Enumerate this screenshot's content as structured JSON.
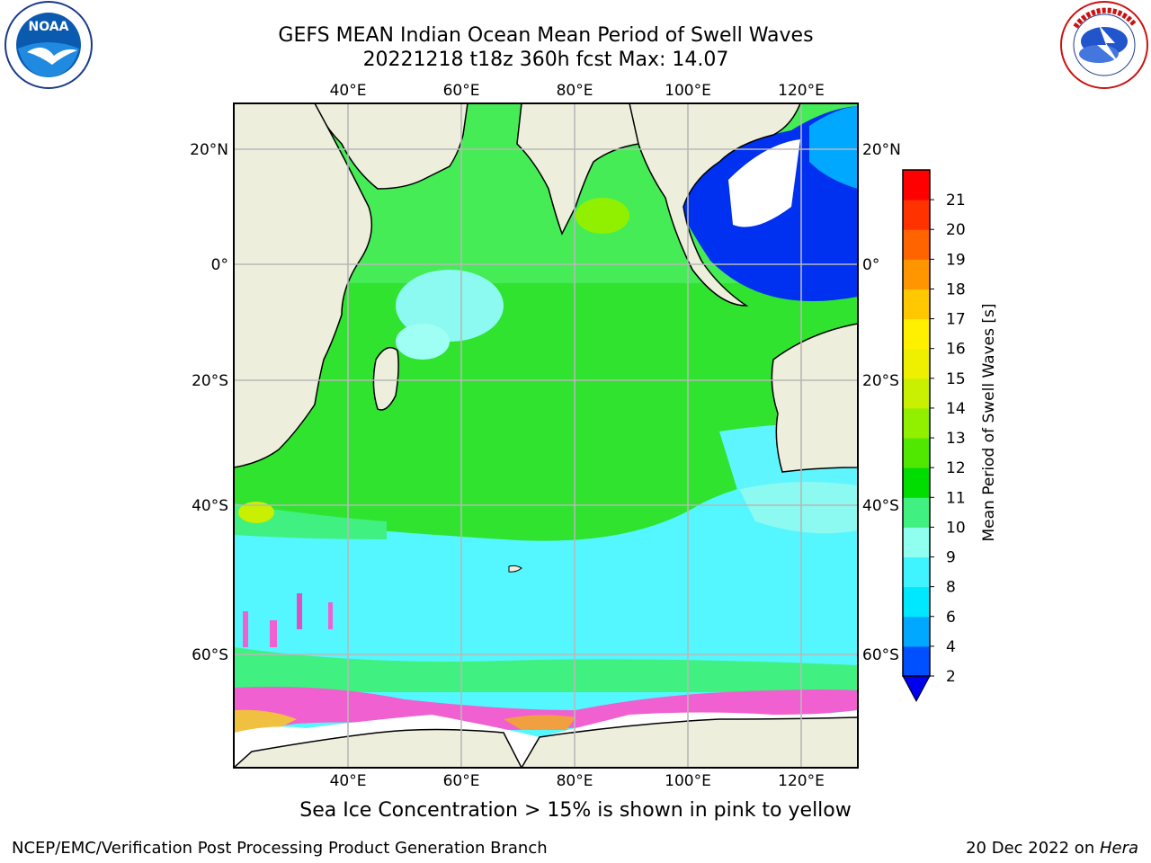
{
  "title_line1": "GEFS MEAN Indian Ocean Mean Period of Swell Waves",
  "title_line2": "20221218 t18z 360h fcst   Max: 14.07",
  "caption": "Sea Ice Concentration > 15% is shown in pink to yellow",
  "footer_left": "NCEP/EMC/Verification Post Processing Product Generation Branch",
  "footer_date": "20 Dec 2022 on ",
  "footer_host": "Hera",
  "logo_left_text": "NOAA",
  "logo_right_text": "NATIONAL WEATHER SERVICE",
  "map": {
    "lon_labels": [
      "40°E",
      "60°E",
      "80°E",
      "100°E",
      "120°E"
    ],
    "lat_labels_left": [
      "20°N",
      "0°",
      "20°S",
      "40°S",
      "60°S"
    ],
    "lat_labels_right": [
      "20°N",
      "0°",
      "20°S",
      "40°S",
      "60°S"
    ]
  },
  "colorbar": {
    "label": "Mean Period of Swell Waves [s]",
    "ticks": [
      "2",
      "4",
      "6",
      "8",
      "9",
      "10",
      "11",
      "12",
      "13",
      "14",
      "15",
      "16",
      "17",
      "18",
      "19",
      "20",
      "21"
    ],
    "colors": [
      "#0050ff",
      "#00a8ff",
      "#00e8ff",
      "#40f4ff",
      "#90fff0",
      "#40f080",
      "#00dd00",
      "#50e800",
      "#90f000",
      "#c8f000",
      "#eef000",
      "#fff000",
      "#ffc800",
      "#ff9600",
      "#ff6400",
      "#ff3200",
      "#ff0000"
    ],
    "extend_color": "#0000ee"
  },
  "colors": {
    "land": "#eeeedd",
    "ocean_green": "#2fe32f",
    "ocean_cyan": "#5ff5ff",
    "ice_pink": "#f060d0",
    "grid": "#b8b8b8"
  }
}
